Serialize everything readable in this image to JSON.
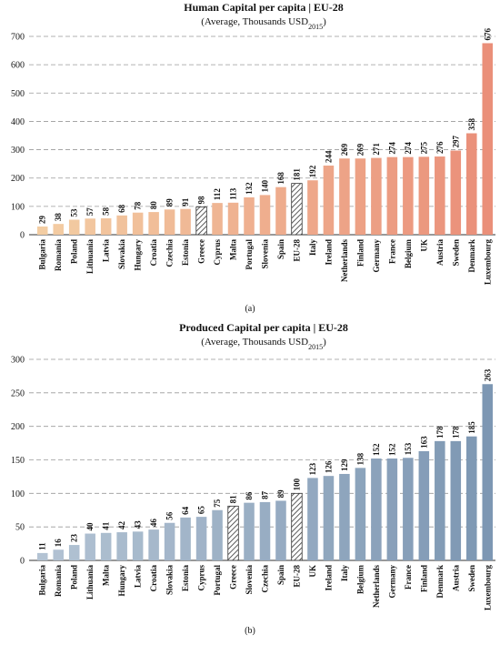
{
  "chart_data": [
    {
      "type": "bar",
      "title": "Human Capital per capita | EU-28",
      "subtitle": [
        "(Average,  Thousands USD",
        "2015",
        ")"
      ],
      "panel_label": "(a)",
      "categories": [
        "Bulgaria",
        "Romania",
        "Poland",
        "Lithuania",
        "Latvia",
        "Slovakia",
        "Hungary",
        "Croatia",
        "Czechia",
        "Estonia",
        "Greece",
        "Cyprus",
        "Malta",
        "Portugal",
        "Slovenia",
        "Spain",
        "EU-28",
        "Italy",
        "Ireland",
        "Netherlands",
        "Finland",
        "Germany",
        "France",
        "Belgium",
        "UK",
        "Austria",
        "Sweden",
        "Denmark",
        "Luxembourg"
      ],
      "values": [
        29,
        38,
        53,
        57,
        58,
        68,
        78,
        80,
        89,
        91,
        98,
        112,
        113,
        132,
        140,
        168,
        181,
        192,
        244,
        269,
        269,
        271,
        274,
        274,
        275,
        276,
        297,
        358,
        676
      ],
      "color_start": "#f3cda3",
      "color_end": "#ea8f79",
      "hatched": [
        10,
        16
      ],
      "ylim": [
        0,
        700
      ],
      "yticks": [
        0,
        100,
        200,
        300,
        400,
        500,
        600,
        700
      ],
      "grid": true
    },
    {
      "type": "bar",
      "title": "Produced Capital per capita | EU-28",
      "subtitle": [
        "(Average,  Thousands USD",
        "2015",
        ")"
      ],
      "panel_label": "(b)",
      "categories": [
        "Bulgaria",
        "Romania",
        "Poland",
        "Lithuania",
        "Malta",
        "Hungary",
        "Latvia",
        "Croatia",
        "Slovakia",
        "Estonia",
        "Cyprus",
        "Portugal",
        "Greece",
        "Slovenia",
        "Czechia",
        "Spain",
        "EU-28",
        "UK",
        "Ireland",
        "Italy",
        "Belgium",
        "Netherlands",
        "Germany",
        "France",
        "Finland",
        "Denmark",
        "Austria",
        "Sweden",
        "Luxembourg"
      ],
      "values": [
        11,
        16,
        23,
        40,
        41,
        42,
        43,
        46,
        56,
        64,
        65,
        75,
        81,
        86,
        87,
        89,
        100,
        123,
        126,
        129,
        138,
        152,
        152,
        153,
        163,
        178,
        178,
        185,
        263
      ],
      "color_start": "#b3c3d3",
      "color_end": "#7d97b3",
      "hatched": [
        12,
        16
      ],
      "ylim": [
        0,
        300
      ],
      "yticks": [
        0,
        50,
        100,
        150,
        200,
        250,
        300
      ],
      "grid": true
    }
  ]
}
